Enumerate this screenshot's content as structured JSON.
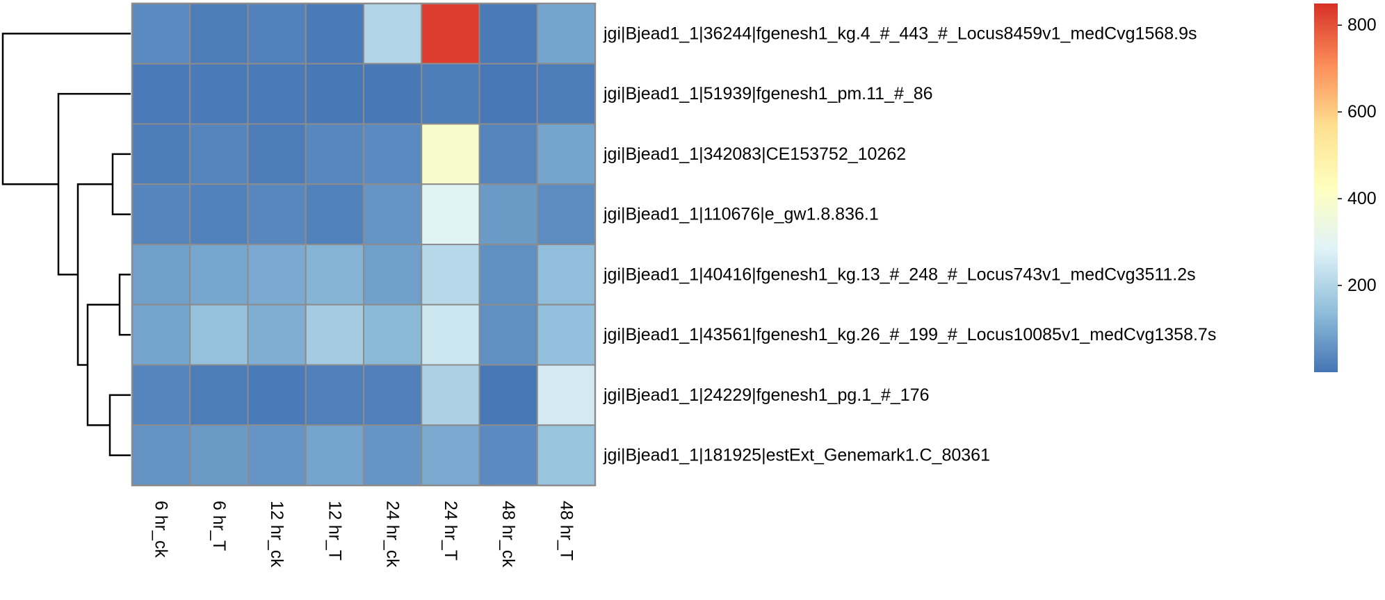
{
  "chart_data": {
    "type": "heatmap",
    "title": "",
    "rows": [
      "jgi|Bjead1_1|36244|fgenesh1_kg.4_#_443_#_Locus8459v1_medCvg1568.9s",
      "jgi|Bjead1_1|51939|fgenesh1_pm.11_#_86",
      "jgi|Bjead1_1|342083|CE153752_10262",
      "jgi|Bjead1_1|110676|e_gw1.8.836.1",
      "jgi|Bjead1_1|40416|fgenesh1_kg.13_#_248_#_Locus743v1_medCvg3511.2s",
      "jgi|Bjead1_1|43561|fgenesh1_kg.26_#_199_#_Locus10085v1_medCvg1358.7s",
      "jgi|Bjead1_1|24229|fgenesh1_pg.1_#_176",
      "jgi|Bjead1_1|181925|estExt_Genemark1.C_80361"
    ],
    "columns": [
      "6 hr_ck",
      "6 hr_T",
      "12 hr_ck",
      "12 hr_T",
      "24 hr_ck",
      "24 hr_T",
      "48 hr_ck",
      "48 hr_T"
    ],
    "values": [
      [
        40,
        15,
        25,
        10,
        200,
        830,
        10,
        90
      ],
      [
        10,
        10,
        10,
        5,
        5,
        15,
        5,
        15
      ],
      [
        15,
        30,
        15,
        35,
        40,
        390,
        30,
        90
      ],
      [
        30,
        25,
        35,
        25,
        60,
        290,
        70,
        45
      ],
      [
        80,
        95,
        100,
        120,
        80,
        210,
        50,
        140
      ],
      [
        90,
        150,
        110,
        175,
        130,
        250,
        50,
        145
      ],
      [
        30,
        15,
        10,
        20,
        20,
        190,
        5,
        260
      ],
      [
        55,
        70,
        60,
        90,
        60,
        100,
        40,
        155
      ]
    ],
    "colorbar": {
      "min": 0,
      "max": 850,
      "ticks": [
        200,
        400,
        600,
        800
      ],
      "colors": [
        "#4575b4",
        "#91bfdb",
        "#e0f3f8",
        "#ffffbf",
        "#fee090",
        "#fc8d59",
        "#d73027"
      ]
    },
    "cell_border_color": "#8c8c8c",
    "row_dendrogram": true,
    "column_dendrogram": false
  }
}
